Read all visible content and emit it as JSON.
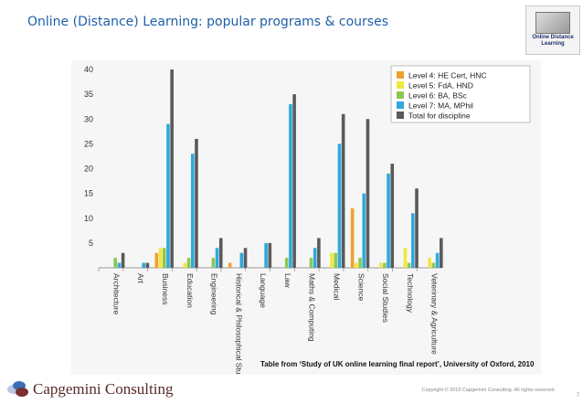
{
  "slide": {
    "title": "Online (Distance) Learning: popular programs & courses",
    "caption": "Table from ‘Study of UK online learning final report’, University of Oxford, 2010",
    "copyright": "Copyright © 2013 Capgemini Consulting. All rights reserved.",
    "page_number": "7"
  },
  "logo": {
    "line1": "Online Distance",
    "line2": "Learning"
  },
  "footer": {
    "company": "Capgemini Consulting"
  },
  "colors": {
    "level4": "#f0a030",
    "level5": "#f2e640",
    "level6": "#8cc850",
    "level7": "#30a8dc",
    "total": "#5a5a5a"
  },
  "chart_data": {
    "type": "bar",
    "title": "",
    "xlabel": "",
    "ylabel": "",
    "ylim": [
      0,
      40
    ],
    "yticks": [
      5,
      10,
      15,
      20,
      25,
      30,
      35,
      40
    ],
    "grid": false,
    "legend_position": "top-right",
    "categories": [
      "Architecture",
      "Art",
      "Business",
      "Education",
      "Engineering",
      "Historical & Philosophical Studies",
      "Language",
      "Law",
      "Maths & Computing",
      "Medical",
      "Science",
      "Social Studies",
      "Technology",
      "Veterinary & Agriculture"
    ],
    "series": [
      {
        "name": "Level 4: HE Cert, HNC",
        "values": [
          0,
          0,
          3,
          0,
          0,
          1,
          0,
          0,
          0,
          0,
          12,
          0,
          0,
          0
        ]
      },
      {
        "name": "Level 5: FdA, HND",
        "values": [
          0,
          0,
          4,
          1,
          0,
          0,
          0,
          0,
          0,
          3,
          1,
          1,
          4,
          2
        ]
      },
      {
        "name": "Level 6: BA, BSc",
        "values": [
          2,
          0,
          4,
          2,
          2,
          0,
          0,
          2,
          2,
          3,
          2,
          1,
          1,
          1
        ]
      },
      {
        "name": "Level 7: MA, MPhil",
        "values": [
          1,
          1,
          29,
          23,
          4,
          3,
          5,
          33,
          4,
          25,
          15,
          19,
          11,
          3
        ]
      },
      {
        "name": "Total for discipline",
        "values": [
          3,
          1,
          40,
          26,
          6,
          4,
          5,
          35,
          6,
          31,
          30,
          21,
          16,
          6
        ]
      }
    ]
  }
}
